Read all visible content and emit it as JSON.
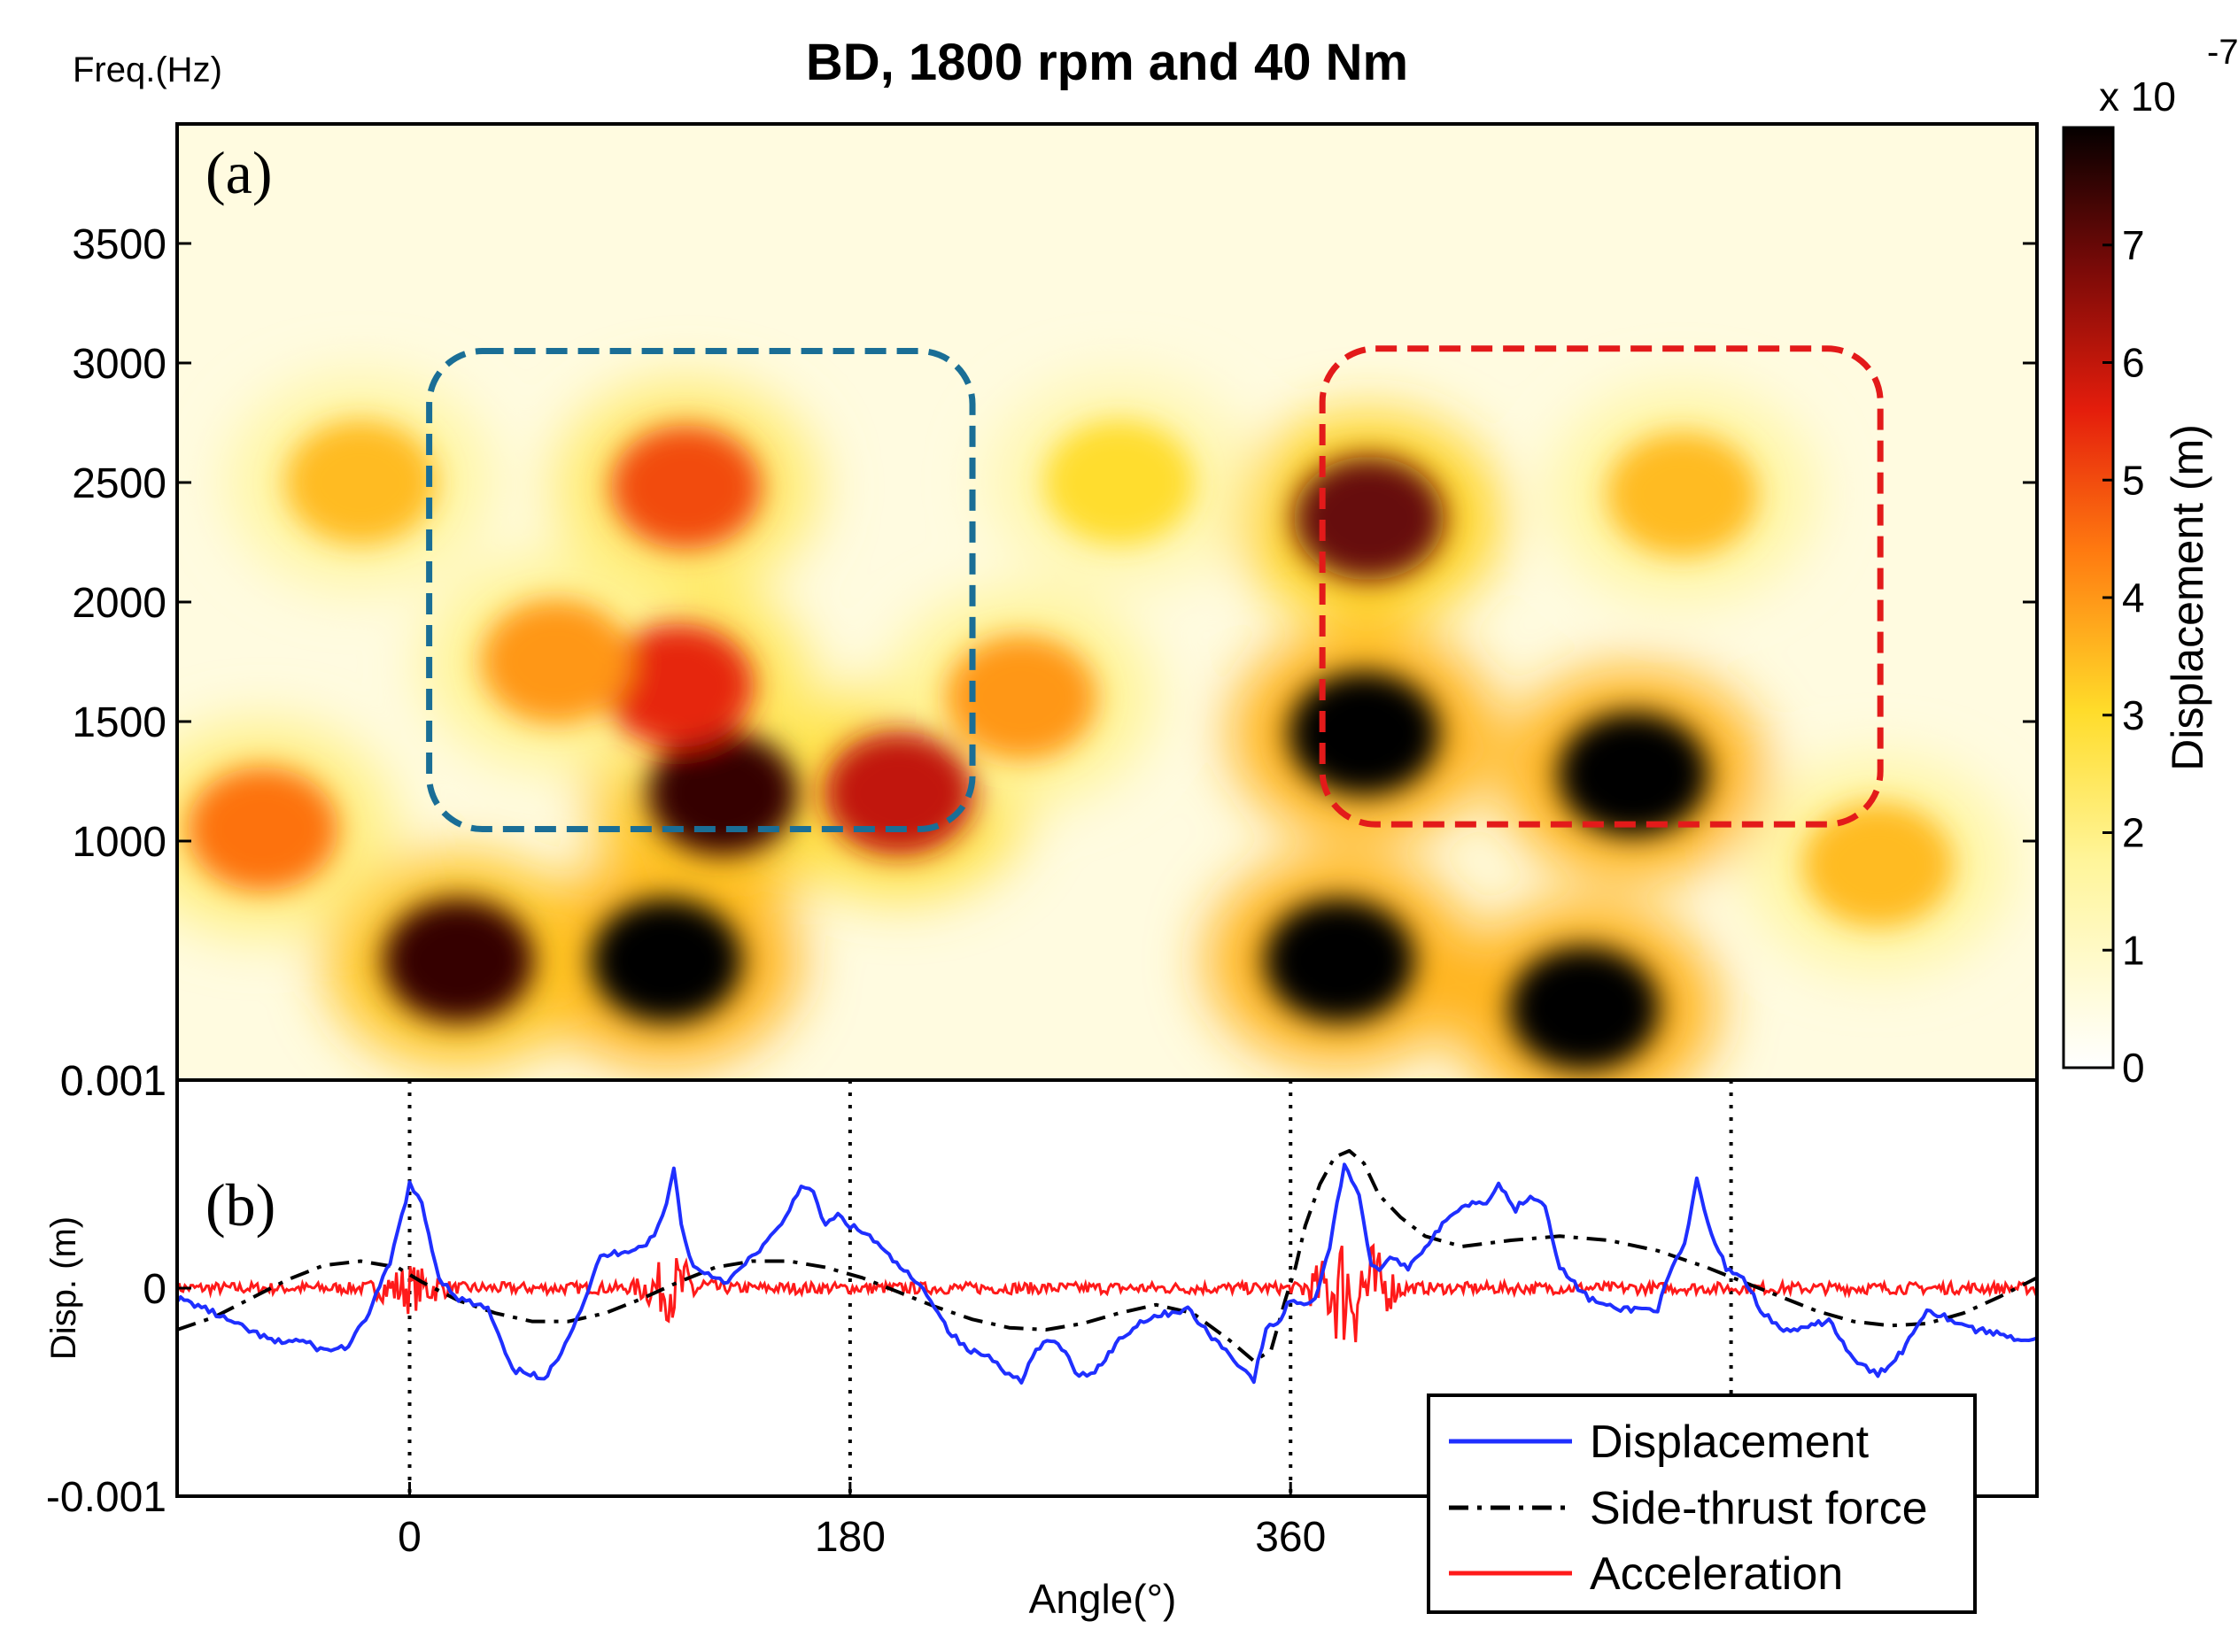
{
  "chart_data": [
    {
      "panel": "(a)",
      "type": "heatmap",
      "title": "BD, 1800 rpm and 40 Nm",
      "ylabel": "Freq.(Hz)",
      "ylim": [
        0.001,
        4000
      ],
      "yticks": [
        0.001,
        1000,
        1500,
        2000,
        2500,
        3000,
        3500
      ],
      "ytick_labels": [
        "0.001",
        "1000",
        "1500",
        "2000",
        "2500",
        "3000",
        "3500"
      ],
      "xlim": [
        -95,
        665
      ],
      "colorbar": {
        "label": "Displacement (m)",
        "exponent_label": "x 10",
        "exponent_power": "-7",
        "range": [
          0,
          8
        ],
        "ticks": [
          0,
          1,
          2,
          3,
          4,
          5,
          6,
          7
        ],
        "tick_labels": [
          "0",
          "1",
          "2",
          "3",
          "4",
          "5",
          "6",
          "7"
        ],
        "colormap": "hot-reversed"
      },
      "hot_spots": [
        {
          "angle": 105,
          "freq": 500,
          "intensity": 8.0
        },
        {
          "angle": 20,
          "freq": 500,
          "intensity": 7.5
        },
        {
          "angle": 128,
          "freq": 1200,
          "intensity": 7.5
        },
        {
          "angle": 200,
          "freq": 1200,
          "intensity": 6.0
        },
        {
          "angle": 110,
          "freq": 1650,
          "intensity": 5.5
        },
        {
          "angle": 113,
          "freq": 2480,
          "intensity": 5.0
        },
        {
          "angle": 60,
          "freq": 1750,
          "intensity": 4.0
        },
        {
          "angle": -20,
          "freq": 2500,
          "intensity": 3.5
        },
        {
          "angle": 380,
          "freq": 500,
          "intensity": 8.0
        },
        {
          "angle": 480,
          "freq": 300,
          "intensity": 8.0
        },
        {
          "angle": 390,
          "freq": 1450,
          "intensity": 8.0
        },
        {
          "angle": 500,
          "freq": 1280,
          "intensity": 8.0
        },
        {
          "angle": 392,
          "freq": 2350,
          "intensity": 7.0
        },
        {
          "angle": 520,
          "freq": 2450,
          "intensity": 3.5
        },
        {
          "angle": 290,
          "freq": 2500,
          "intensity": 3.0
        },
        {
          "angle": 250,
          "freq": 1600,
          "intensity": 4.0
        },
        {
          "angle": 600,
          "freq": 900,
          "intensity": 3.5
        },
        {
          "angle": -60,
          "freq": 1050,
          "intensity": 4.5
        }
      ],
      "regions": [
        {
          "name": "blue-region",
          "color": "#1a6e96",
          "angle_range": [
            8,
            230
          ],
          "freq_range": [
            1050,
            3050
          ]
        },
        {
          "name": "red-region",
          "color": "#e31a1a",
          "angle_range": [
            373,
            601
          ],
          "freq_range": [
            1070,
            3060
          ]
        }
      ]
    },
    {
      "panel": "(b)",
      "type": "line",
      "xlabel": "Angle(°)",
      "ylabel": "Disp. (m)",
      "xlim": [
        -95,
        665
      ],
      "ylim": [
        -0.001,
        0.001
      ],
      "xticks": [
        0,
        180,
        360
      ],
      "xtick_labels": [
        "0",
        "180",
        "360"
      ],
      "yticks": [
        -0.001,
        0,
        0.001
      ],
      "ytick_labels": [
        "-0.001",
        "0",
        "0.001"
      ],
      "vlines": [
        0,
        180,
        360,
        540
      ],
      "series": [
        {
          "name": "Displacement",
          "color": "#1f2fff",
          "style": "solid",
          "x": [
            -95,
            -85,
            -70,
            -55,
            -45,
            -35,
            -25,
            -18,
            -8,
            0,
            5,
            12,
            20,
            32,
            42,
            48,
            55,
            62,
            70,
            78,
            88,
            95,
            100,
            105,
            108,
            111,
            116,
            122,
            130,
            140,
            152,
            160,
            165,
            170,
            175,
            180,
            188,
            196,
            205,
            213,
            220,
            228,
            235,
            240,
            245,
            250,
            256,
            262,
            268,
            272,
            280,
            290,
            300,
            310,
            318,
            325,
            332,
            340,
            345,
            350,
            356,
            360,
            364,
            370,
            376,
            382,
            388,
            393,
            398,
            402,
            408,
            415,
            422,
            430,
            440,
            445,
            452,
            458,
            464,
            470,
            476,
            482,
            492,
            502,
            510,
            516,
            521,
            526,
            532,
            538,
            545,
            552,
            560,
            570,
            580,
            590,
            595,
            600,
            610,
            620,
            630,
            640,
            650,
            660,
            665
          ],
          "y": [
            -5e-05,
            -9e-05,
            -0.00018,
            -0.00026,
            -0.00025,
            -0.0003,
            -0.00028,
            -0.00015,
            0.00012,
            0.0005,
            0.0004,
            5e-05,
            -5e-05,
            -0.0001,
            -0.0004,
            -0.0004,
            -0.00045,
            -0.0003,
            -0.0001,
            0.00015,
            0.00018,
            0.0002,
            0.00025,
            0.0004,
            0.00059,
            0.0003,
            0.0001,
            7e-05,
            3e-05,
            0.00015,
            0.0003,
            0.0005,
            0.00045,
            0.0003,
            0.00035,
            0.0003,
            0.00025,
            0.00015,
            5e-05,
            -5e-05,
            -0.0002,
            -0.0003,
            -0.00032,
            -0.00035,
            -0.00042,
            -0.00044,
            -0.0003,
            -0.00025,
            -0.0003,
            -0.00042,
            -0.0004,
            -0.00025,
            -0.00015,
            -0.00012,
            -0.0001,
            -0.0002,
            -0.00028,
            -0.00038,
            -0.00044,
            -0.0002,
            -0.00015,
            -5e-05,
            -8e-05,
            -5e-05,
            0.0002,
            0.0006,
            0.00045,
            0.0001,
            0.0001,
            0.00015,
            0.0001,
            0.0002,
            0.0003,
            0.0004,
            0.00042,
            0.0005,
            0.00038,
            0.00045,
            0.0004,
            0.0001,
            2e-05,
            -5e-05,
            -0.0001,
            -0.0001,
            -0.0001,
            0.0001,
            0.0002,
            0.00052,
            0.00025,
            0.0001,
            5e-05,
            -0.0001,
            -0.0002,
            -0.0002,
            -0.00015,
            -0.00035,
            -0.00038,
            -0.00042,
            -0.0003,
            -0.0001,
            -0.00015,
            -0.0002,
            -0.00022,
            -0.00025,
            -0.00024
          ]
        },
        {
          "name": "Side-thrust force",
          "color": "#000000",
          "style": "dashdot",
          "x": [
            -95,
            -80,
            -65,
            -50,
            -35,
            -20,
            -5,
            5,
            20,
            35,
            50,
            65,
            80,
            95,
            110,
            125,
            140,
            155,
            170,
            185,
            200,
            215,
            230,
            245,
            260,
            275,
            290,
            305,
            320,
            335,
            345,
            352,
            358,
            362,
            366,
            372,
            378,
            384,
            390,
            396,
            405,
            415,
            430,
            450,
            470,
            490,
            510,
            530,
            545,
            560,
            575,
            590,
            605,
            620,
            635,
            650,
            665
          ],
          "y": [
            -0.0002,
            -0.00014,
            -5e-05,
            4e-05,
            0.00011,
            0.00013,
            0.0001,
            3e-05,
            -6e-05,
            -0.00012,
            -0.00016,
            -0.00016,
            -0.00012,
            -5e-05,
            3e-05,
            0.0001,
            0.00013,
            0.00013,
            0.0001,
            5e-05,
            -2e-05,
            -9e-05,
            -0.00015,
            -0.00019,
            -0.0002,
            -0.00017,
            -0.00012,
            -8e-05,
            -0.00012,
            -0.00025,
            -0.00035,
            -0.0003,
            -5e-05,
            0.0001,
            0.0003,
            0.0005,
            0.00063,
            0.00066,
            0.0006,
            0.00045,
            0.00034,
            0.00025,
            0.0002,
            0.00023,
            0.00025,
            0.00023,
            0.00018,
            0.0001,
            3e-05,
            -4e-05,
            -0.00011,
            -0.00016,
            -0.00018,
            -0.00017,
            -0.00012,
            -4e-05,
            5e-05
          ]
        },
        {
          "name": "Acceleration",
          "color": "#ff1a1a",
          "style": "solid",
          "description_level": 0.0,
          "bursts": [
            {
              "angle": 0,
              "amplitude": 0.0001
            },
            {
              "angle": 108,
              "amplitude": 0.00015
            },
            {
              "angle": 380,
              "amplitude": 0.00018
            },
            {
              "angle": 390,
              "amplitude": 0.0002
            }
          ]
        }
      ],
      "legend": {
        "position": "bottom-right",
        "entries": [
          "Displacement",
          "Side-thrust force",
          "Acceleration"
        ]
      }
    }
  ]
}
